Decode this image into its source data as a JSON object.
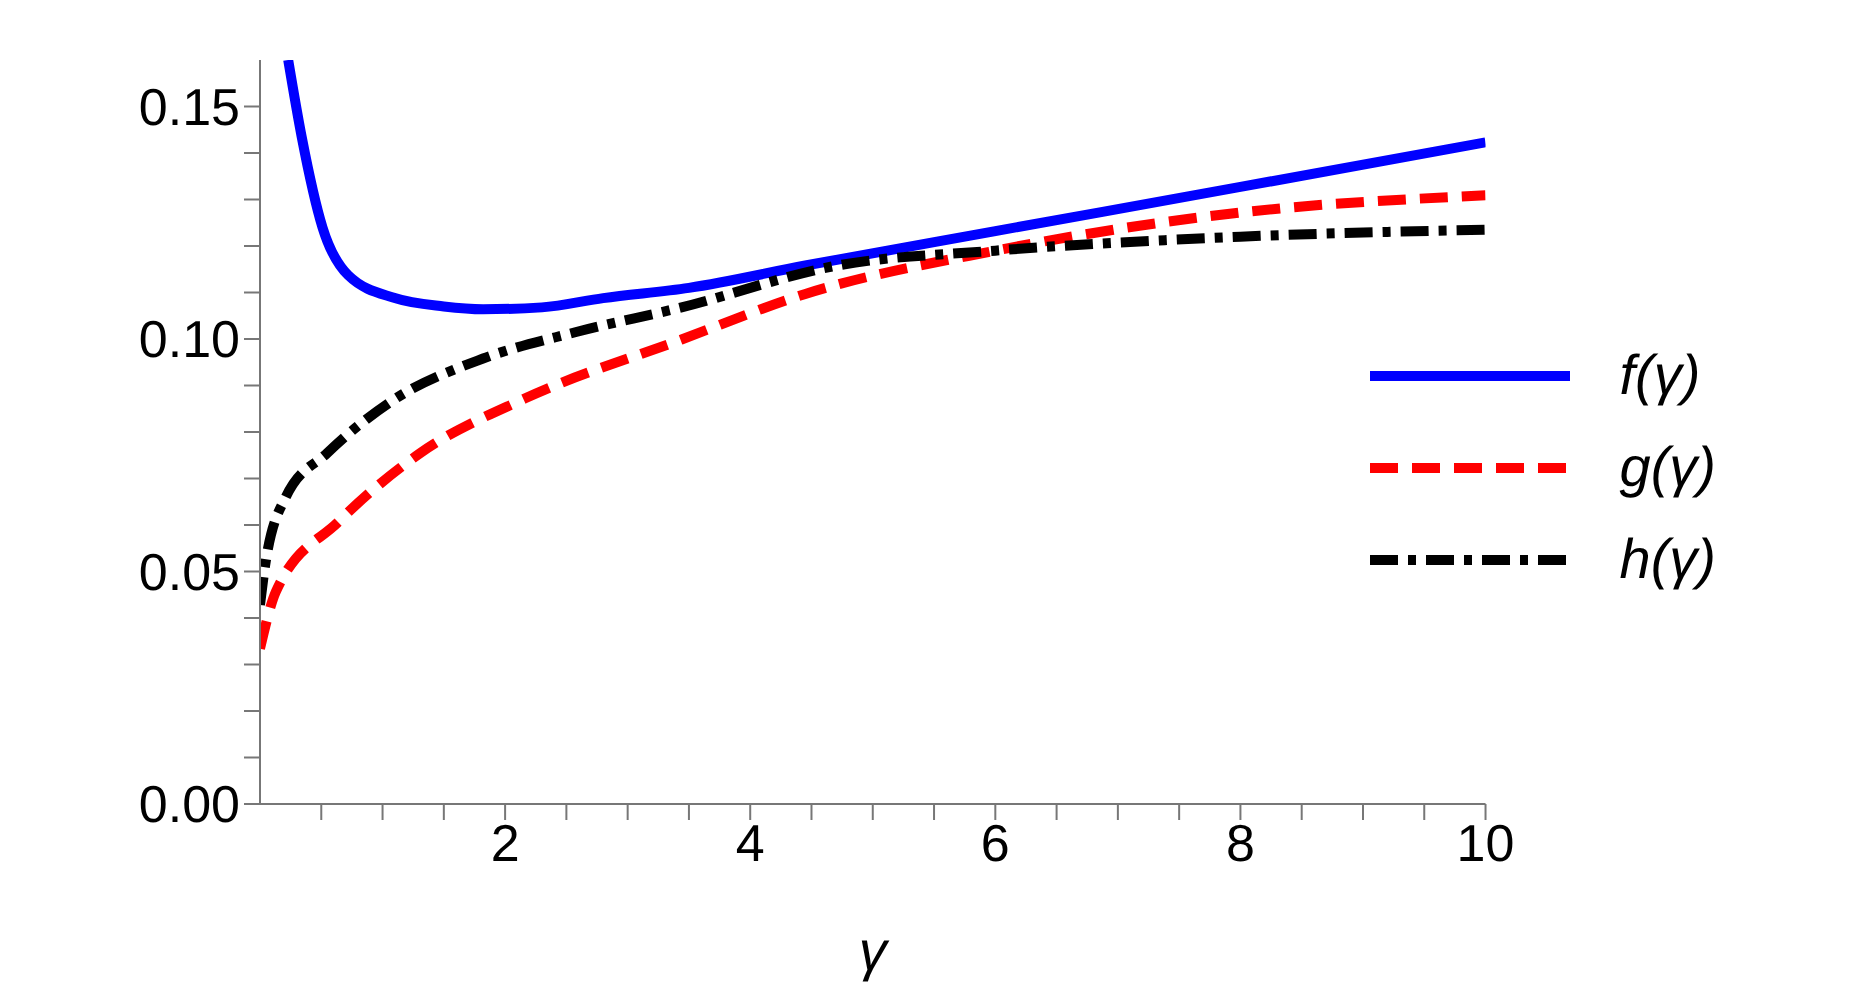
{
  "chart_data": {
    "type": "line",
    "xlabel": "γ",
    "xlim": [
      0,
      10
    ],
    "ylim": [
      0,
      0.16
    ],
    "xticks": [
      {
        "value": 0.5,
        "label": null
      },
      {
        "value": 1,
        "label": null
      },
      {
        "value": 1.5,
        "label": null
      },
      2,
      {
        "value": 2.5,
        "label": null
      },
      {
        "value": 3,
        "label": null
      },
      {
        "value": 3.5,
        "label": null
      },
      4,
      {
        "value": 4.5,
        "label": null
      },
      {
        "value": 5,
        "label": null
      },
      {
        "value": 5.5,
        "label": null
      },
      6,
      {
        "value": 6.5,
        "label": null
      },
      {
        "value": 7,
        "label": null
      },
      {
        "value": 7.5,
        "label": null
      },
      8,
      {
        "value": 8.5,
        "label": null
      },
      {
        "value": 9,
        "label": null
      },
      {
        "value": 9.5,
        "label": null
      },
      10
    ],
    "yticks": [
      {
        "value": 0,
        "label": "0.00"
      },
      {
        "value": 0.01,
        "label": null
      },
      {
        "value": 0.02,
        "label": null
      },
      {
        "value": 0.03,
        "label": null
      },
      {
        "value": 0.04,
        "label": null
      },
      0.05,
      {
        "value": 0.06,
        "label": null
      },
      {
        "value": 0.07,
        "label": null
      },
      {
        "value": 0.08,
        "label": null
      },
      {
        "value": 0.09,
        "label": null
      },
      {
        "value": 0.1,
        "label": "0.10"
      },
      {
        "value": 0.11,
        "label": null
      },
      {
        "value": 0.12,
        "label": null
      },
      {
        "value": 0.13,
        "label": null
      },
      {
        "value": 0.14,
        "label": null
      },
      0.15
    ],
    "legend": "right",
    "marker": "none",
    "series": [
      {
        "name": "f(γ)",
        "color": "#0000ff",
        "line_style": "solid",
        "x": [
          0.23,
          0.34,
          0.51,
          0.72,
          1.1,
          1.5,
          1.82,
          2.3,
          2.8,
          3.5,
          4.45,
          6,
          8,
          10
        ],
        "values": [
          0.16,
          0.1435,
          0.124,
          0.1137,
          0.1088,
          0.107,
          0.1064,
          0.1068,
          0.1088,
          0.111,
          0.1158,
          0.1232,
          0.1327,
          0.1423
        ]
      },
      {
        "name": "g(γ)",
        "color": "#ff0000",
        "line_style": "dashed",
        "x": [
          0,
          0.13,
          0.64,
          1.31,
          2.16,
          3.44,
          4.45,
          6,
          8,
          10
        ],
        "values": [
          0.0334,
          0.0457,
          0.0607,
          0.0755,
          0.0872,
          0.0999,
          0.1097,
          0.119,
          0.1272,
          0.1309
        ]
      },
      {
        "name": "h(γ)",
        "color": "#000000",
        "line_style": "dashdot",
        "x": [
          0,
          0.04,
          0.21,
          0.55,
          1.06,
          1.82,
          2.58,
          3.44,
          4.71,
          6,
          8,
          10
        ],
        "values": [
          0.0428,
          0.051,
          0.066,
          0.0755,
          0.0864,
          0.0958,
          0.1015,
          0.1068,
          0.1158,
          0.119,
          0.122,
          0.1235
        ]
      }
    ]
  }
}
